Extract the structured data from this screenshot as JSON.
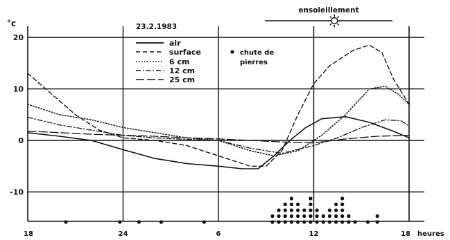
{
  "chart_data": {
    "type": "line",
    "date": "23.2.1983",
    "y_unit": "°c",
    "x_unit": "heures",
    "ylim": [
      -16,
      22
    ],
    "xlim": [
      18,
      42
    ],
    "y_ticks": [
      {
        "value": 20,
        "label": "20"
      },
      {
        "value": 10,
        "label": "10"
      },
      {
        "value": 0,
        "label": "0"
      },
      {
        "value": -10,
        "label": "-10"
      }
    ],
    "x_ticks": [
      {
        "value": 18,
        "label": "18"
      },
      {
        "value": 24,
        "label": "24"
      },
      {
        "value": 30,
        "label": "6"
      },
      {
        "value": 36,
        "label": "12"
      },
      {
        "value": 42,
        "label": "18"
      }
    ],
    "grid_x": [
      24,
      30,
      36
    ],
    "grid_y": [
      20,
      10,
      0,
      -10
    ],
    "sunshine": {
      "label": "ensoleillement",
      "start": 33.2,
      "end": 40.8,
      "sun_at": 37.3
    },
    "rockfall_label": [
      "chute de",
      "pierres"
    ],
    "series": [
      {
        "name": "air",
        "style": "solid",
        "x": [
          18,
          20,
          22,
          24,
          26,
          28,
          30,
          31.5,
          32.5,
          33.5,
          34.5,
          35.5,
          36.5,
          38,
          39.5,
          41,
          42
        ],
        "y": [
          1.5,
          0.8,
          0,
          -1.8,
          -3.5,
          -4.5,
          -5,
          -5.5,
          -5.5,
          -3,
          0,
          2.5,
          4.2,
          4.6,
          3.5,
          1.8,
          0.5
        ]
      },
      {
        "name": "surface",
        "style": "dashed",
        "x": [
          18,
          19.5,
          21,
          22.5,
          24,
          26,
          28,
          30,
          32,
          33,
          34,
          35,
          36,
          37,
          38.5,
          39.5,
          40.3,
          41,
          42
        ],
        "y": [
          13,
          9,
          5,
          2,
          0.5,
          0,
          -1,
          -3,
          -5,
          -5,
          -2,
          5,
          11,
          14.5,
          17.5,
          18.5,
          17,
          12,
          7
        ]
      },
      {
        "name": "6 cm",
        "style": "dotted",
        "x": [
          18,
          20,
          22,
          24,
          26,
          28,
          30,
          32,
          33.5,
          35,
          36.5,
          38,
          39.5,
          40.5,
          41.3,
          42
        ],
        "y": [
          7,
          5,
          4,
          2.5,
          1.5,
          0.5,
          0,
          -2,
          -3,
          -2,
          1,
          5,
          10,
          10.5,
          9,
          7
        ]
      },
      {
        "name": "12 cm",
        "style": "dash-dot",
        "x": [
          18,
          20,
          22,
          24,
          26,
          28,
          30,
          32,
          34,
          36,
          37.5,
          39,
          40.5,
          41.5,
          42
        ],
        "y": [
          4.5,
          3,
          2,
          1,
          0.5,
          0.2,
          0,
          -1.5,
          -2.5,
          -1,
          0.5,
          2.5,
          4,
          3.8,
          2.8
        ]
      },
      {
        "name": "25 cm",
        "style": "long-dash",
        "x": [
          18,
          20,
          22,
          24,
          26,
          28,
          30,
          32,
          34,
          36,
          38,
          40,
          42
        ],
        "y": [
          1.8,
          1.5,
          1.2,
          1,
          0.8,
          0.5,
          0.3,
          0,
          -0.3,
          -0.5,
          0.3,
          0.8,
          1
        ]
      }
    ],
    "rockfall_events": [
      {
        "x": 20.4,
        "n": 1
      },
      {
        "x": 23.8,
        "n": 1
      },
      {
        "x": 25,
        "n": 1
      },
      {
        "x": 26.4,
        "n": 1
      },
      {
        "x": 29.1,
        "n": 1
      },
      {
        "x": 33.4,
        "n": 2
      },
      {
        "x": 33.8,
        "n": 3
      },
      {
        "x": 34.2,
        "n": 4
      },
      {
        "x": 34.6,
        "n": 5
      },
      {
        "x": 35.0,
        "n": 4
      },
      {
        "x": 35.4,
        "n": 3
      },
      {
        "x": 35.8,
        "n": 5
      },
      {
        "x": 36.2,
        "n": 3
      },
      {
        "x": 36.6,
        "n": 2
      },
      {
        "x": 37.0,
        "n": 3
      },
      {
        "x": 37.4,
        "n": 4
      },
      {
        "x": 37.8,
        "n": 5
      },
      {
        "x": 38.2,
        "n": 2
      },
      {
        "x": 38.6,
        "n": 1
      },
      {
        "x": 39.4,
        "n": 1
      },
      {
        "x": 40.0,
        "n": 2
      }
    ]
  }
}
